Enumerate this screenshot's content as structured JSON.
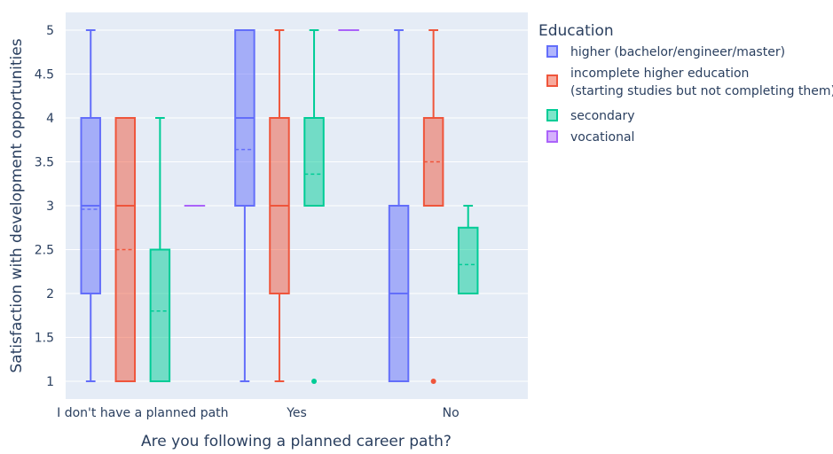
{
  "chart_data": {
    "type": "box",
    "title": "",
    "xlabel": "Are you following a planned career path?",
    "ylabel": "Satisfaction with development opportunities",
    "ylim": [
      0.8,
      5.2
    ],
    "yticks": [
      "1",
      "1.5",
      "2",
      "2.5",
      "3",
      "3.5",
      "4",
      "4.5",
      "5"
    ],
    "ytick_values": [
      1,
      1.5,
      2,
      2.5,
      3,
      3.5,
      4,
      4.5,
      5
    ],
    "categories": [
      "I don't have a planned path",
      "Yes",
      "No"
    ],
    "legend": {
      "title": "Education",
      "placement": "right"
    },
    "series": [
      {
        "name": "higher (bachelor/engineer/master)",
        "legend_lines": [
          "higher (bachelor/engineer/master)"
        ],
        "color": "#636efa",
        "boxes": [
          {
            "category": "I don't have a planned path",
            "min": 1,
            "q1": 2,
            "median": 3,
            "mean": 2.96,
            "q3": 4,
            "max": 5,
            "outliers": []
          },
          {
            "category": "Yes",
            "min": 1,
            "q1": 3,
            "median": 4,
            "mean": 3.64,
            "q3": 5,
            "max": 5,
            "outliers": []
          },
          {
            "category": "No",
            "min": 1,
            "q1": 1,
            "median": 2,
            "mean": null,
            "q3": 3,
            "max": 5,
            "outliers": []
          }
        ]
      },
      {
        "name": "incomplete higher education (starting studies but not completing them)",
        "legend_lines": [
          "incomplete higher education",
          "(starting studies but not completing them)"
        ],
        "color": "#ef553b",
        "boxes": [
          {
            "category": "I don't have a planned path",
            "min": 1,
            "q1": 1,
            "median": 3,
            "mean": 2.5,
            "q3": 4,
            "max": 4,
            "outliers": []
          },
          {
            "category": "Yes",
            "min": 1,
            "q1": 2,
            "median": 3,
            "mean": null,
            "q3": 4,
            "max": 5,
            "outliers": []
          },
          {
            "category": "No",
            "min": 3,
            "q1": 3,
            "median": 4,
            "mean": 3.5,
            "q3": 4,
            "max": 5,
            "outliers": [
              1
            ]
          }
        ]
      },
      {
        "name": "secondary",
        "legend_lines": [
          "secondary"
        ],
        "color": "#00cc96",
        "boxes": [
          {
            "category": "I don't have a planned path",
            "min": 1,
            "q1": 1,
            "median": 1,
            "mean": 1.8,
            "q3": 2.5,
            "max": 4,
            "outliers": []
          },
          {
            "category": "Yes",
            "min": 3,
            "q1": 3,
            "median": 4,
            "mean": 3.36,
            "q3": 4,
            "max": 5,
            "outliers": [
              1
            ]
          },
          {
            "category": "No",
            "min": 2,
            "q1": 2,
            "median": 2,
            "mean": 2.33,
            "q3": 2.75,
            "max": 3,
            "outliers": []
          }
        ]
      },
      {
        "name": "vocational",
        "legend_lines": [
          "vocational"
        ],
        "color": "#ab63fa",
        "boxes": [
          {
            "category": "I don't have a planned path",
            "min": 3,
            "q1": 3,
            "median": 3,
            "mean": 3,
            "q3": 3,
            "max": 3,
            "outliers": []
          },
          {
            "category": "Yes",
            "min": 5,
            "q1": 5,
            "median": 5,
            "mean": 5,
            "q3": 5,
            "max": 5,
            "outliers": []
          }
        ]
      }
    ]
  }
}
